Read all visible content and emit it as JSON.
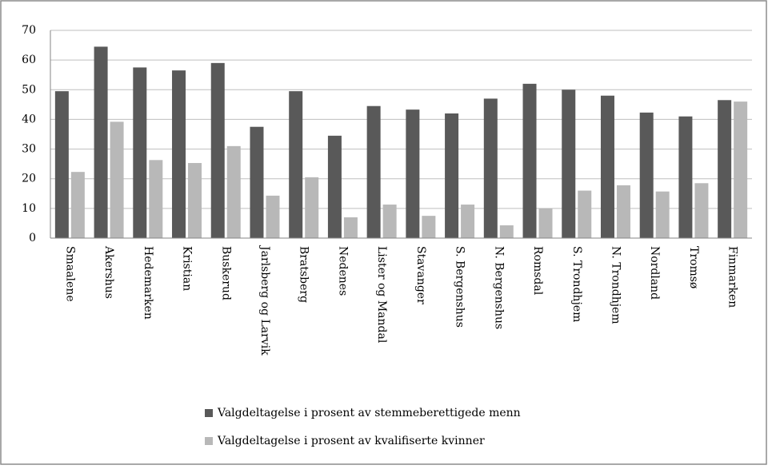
{
  "chart_data": {
    "type": "bar",
    "categories": [
      "Smaalene",
      "Akershus",
      "Hedemarken",
      "Kristian",
      "Buskerud",
      "Jarlsberg og Larvik",
      "Bratsberg",
      "Nedenes",
      "Lister og Mandal",
      "Stavanger",
      "S. Bergenshus",
      "N. Bergenshus",
      "Romsdal",
      "S. Trondhjem",
      "N. Trondhjem",
      "Nordland",
      "Tromsø",
      "Finmarken"
    ],
    "series": [
      {
        "name": "Valgdeltagelse i prosent av stemmeberettigede menn",
        "color": "#595959",
        "values": [
          49.5,
          64.5,
          57.5,
          56.5,
          59,
          37.5,
          49.5,
          34.5,
          44.5,
          43.3,
          42,
          47,
          52,
          50,
          48,
          42.3,
          41,
          46.5
        ]
      },
      {
        "name": "Valgdeltagelse i prosent av kvalifiserte kvinner",
        "color": "#b8b8b8",
        "values": [
          22.3,
          39.2,
          26.3,
          25.3,
          31,
          14.3,
          20.5,
          7,
          11.3,
          7.5,
          11.3,
          4.3,
          10,
          16,
          17.8,
          15.7,
          18.5,
          46
        ]
      }
    ],
    "ylim": [
      0,
      70
    ],
    "yticks": [
      0,
      10,
      20,
      30,
      40,
      50,
      60,
      70
    ],
    "grid": true
  }
}
